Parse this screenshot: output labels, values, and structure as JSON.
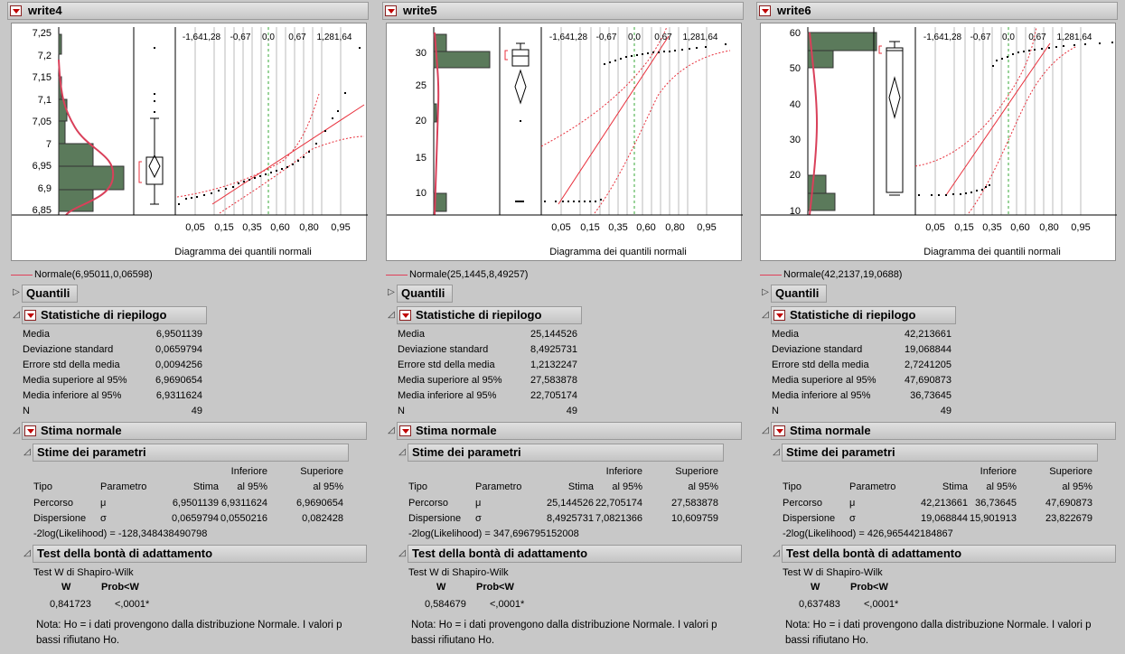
{
  "columns": [
    {
      "title": "write4",
      "plot": {
        "yticks": [
          "7,25",
          "7,2",
          "7,15",
          "7,1",
          "7,05",
          "7",
          "6,95",
          "6,9",
          "6,85"
        ],
        "top_ticks": [
          "-1,641,28",
          "-0,67",
          "0,0",
          "0,67",
          "1,281,64"
        ],
        "bottom_ticks": [
          "0,05",
          "0,15",
          "0,35",
          "0,60",
          "0,80",
          "0,95"
        ],
        "xlabel": "Diagramma dei quantili normali"
      },
      "legend": "Normale(6,95011,0,06598)",
      "quantili": "Quantili",
      "summary_title": "Statistiche di riepilogo",
      "summary": [
        {
          "label": "Media",
          "value": "6,9501139"
        },
        {
          "label": "Deviazione standard",
          "value": "0,0659794"
        },
        {
          "label": "Errore std della media",
          "value": "0,0094256"
        },
        {
          "label": "Media superiore al 95%",
          "value": "6,9690654"
        },
        {
          "label": "Media inferiore al 95%",
          "value": "6,9311624"
        },
        {
          "label": "N",
          "value": "49"
        }
      ],
      "normal_title": "Stima normale",
      "params_title": "Stime dei parametri",
      "params_head": {
        "tipo": "Tipo",
        "param": "Parametro",
        "stima": "Stima",
        "inf1": "Inferiore",
        "inf2": "al 95%",
        "sup1": "Superiore",
        "sup2": "al 95%"
      },
      "params": [
        {
          "tipo": "Percorso",
          "param": "μ",
          "stima": "6,9501139",
          "inf": "6,9311624",
          "sup": "6,9690654"
        },
        {
          "tipo": "Dispersione",
          "param": "σ",
          "stima": "0,0659794",
          "inf": "0,0550216",
          "sup": "0,082428"
        }
      ],
      "loglik": "-2log(Likelihood) = -128,348438490798",
      "gof_title": "Test della bontà di adattamento",
      "gof_sub": "Test W di Shapiro-Wilk",
      "gof_head": {
        "w": "W",
        "p": "Prob<W"
      },
      "gof": {
        "w": "0,841723",
        "p": "<,0001*"
      },
      "note1": "Nota: Ho = i dati provengono dalla distribuzione Normale. I valori p",
      "note2": "bassi rifiutano Ho."
    },
    {
      "title": "write5",
      "plot": {
        "yticks": [
          "30",
          "25",
          "20",
          "15",
          "10"
        ],
        "top_ticks": [
          "-1,641,28",
          "-0,67",
          "0,0",
          "0,67",
          "1,281,64"
        ],
        "bottom_ticks": [
          "0,05",
          "0,15",
          "0,35",
          "0,60",
          "0,80",
          "0,95"
        ],
        "xlabel": "Diagramma dei quantili normali"
      },
      "legend": "Normale(25,1445,8,49257)",
      "quantili": "Quantili",
      "summary_title": "Statistiche di riepilogo",
      "summary": [
        {
          "label": "Media",
          "value": "25,144526"
        },
        {
          "label": "Deviazione standard",
          "value": "8,4925731"
        },
        {
          "label": "Errore std della media",
          "value": "1,2132247"
        },
        {
          "label": "Media superiore al 95%",
          "value": "27,583878"
        },
        {
          "label": "Media inferiore al 95%",
          "value": "22,705174"
        },
        {
          "label": "N",
          "value": "49"
        }
      ],
      "normal_title": "Stima normale",
      "params_title": "Stime dei parametri",
      "params_head": {
        "tipo": "Tipo",
        "param": "Parametro",
        "stima": "Stima",
        "inf1": "Inferiore",
        "inf2": "al 95%",
        "sup1": "Superiore",
        "sup2": "al 95%"
      },
      "params": [
        {
          "tipo": "Percorso",
          "param": "μ",
          "stima": "25,144526",
          "inf": "22,705174",
          "sup": "27,583878"
        },
        {
          "tipo": "Dispersione",
          "param": "σ",
          "stima": "8,4925731",
          "inf": "7,0821366",
          "sup": "10,609759"
        }
      ],
      "loglik": "-2log(Likelihood) = 347,696795152008",
      "gof_title": "Test della bontà di adattamento",
      "gof_sub": "Test W di Shapiro-Wilk",
      "gof_head": {
        "w": "W",
        "p": "Prob<W"
      },
      "gof": {
        "w": "0,584679",
        "p": "<,0001*"
      },
      "note1": "Nota: Ho = i dati provengono dalla distribuzione Normale. I valori p",
      "note2": "bassi rifiutano Ho."
    },
    {
      "title": "write6",
      "plot": {
        "yticks": [
          "60",
          "50",
          "40",
          "30",
          "20",
          "10"
        ],
        "top_ticks": [
          "-1,641,28",
          "-0,67",
          "0,0",
          "0,67",
          "1,281,64"
        ],
        "bottom_ticks": [
          "0,05",
          "0,15",
          "0,35",
          "0,60",
          "0,80",
          "0,95"
        ],
        "xlabel": "Diagramma dei quantili normali"
      },
      "legend": "Normale(42,2137,19,0688)",
      "quantili": "Quantili",
      "summary_title": "Statistiche di riepilogo",
      "summary": [
        {
          "label": "Media",
          "value": "42,213661"
        },
        {
          "label": "Deviazione standard",
          "value": "19,068844"
        },
        {
          "label": "Errore std della media",
          "value": "2,7241205"
        },
        {
          "label": "Media superiore al 95%",
          "value": "47,690873"
        },
        {
          "label": "Media inferiore al 95%",
          "value": "36,73645"
        },
        {
          "label": "N",
          "value": "49"
        }
      ],
      "normal_title": "Stima normale",
      "params_title": "Stime dei parametri",
      "params_head": {
        "tipo": "Tipo",
        "param": "Parametro",
        "stima": "Stima",
        "inf1": "Inferiore",
        "inf2": "al 95%",
        "sup1": "Superiore",
        "sup2": "al 95%"
      },
      "params": [
        {
          "tipo": "Percorso",
          "param": "μ",
          "stima": "42,213661",
          "inf": "36,73645",
          "sup": "47,690873"
        },
        {
          "tipo": "Dispersione",
          "param": "σ",
          "stima": "19,068844",
          "inf": "15,901913",
          "sup": "23,822679"
        }
      ],
      "loglik": "-2log(Likelihood) = 426,965442184867",
      "gof_title": "Test della bontà di adattamento",
      "gof_sub": "Test W di Shapiro-Wilk",
      "gof_head": {
        "w": "W",
        "p": "Prob<W"
      },
      "gof": {
        "w": "0,637483",
        "p": "<,0001*"
      },
      "note1": "Nota: Ho = i dati provengono dalla distribuzione Normale. I valori p",
      "note2": "bassi rifiutano Ho."
    }
  ],
  "colors": {
    "bar": "#5b7a5b",
    "curve": "#d9405a",
    "fit": "#e8303c",
    "ref": "#3aa83a"
  }
}
